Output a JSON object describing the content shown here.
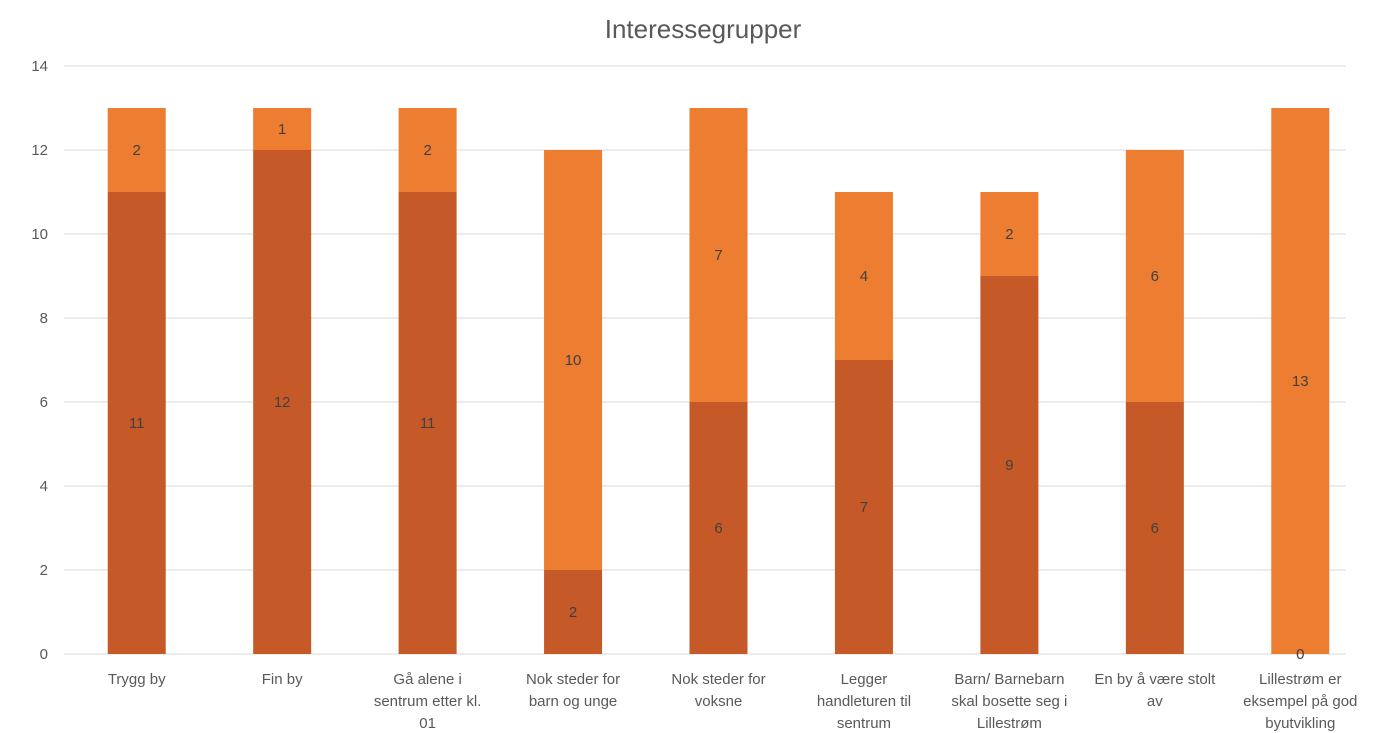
{
  "chart_data": {
    "type": "bar",
    "stacked": true,
    "title": "Interessegrupper",
    "categories": [
      [
        "Trygg by"
      ],
      [
        "Fin by"
      ],
      [
        "Gå alene i",
        "sentrum etter kl.",
        "01"
      ],
      [
        "Nok steder for",
        "barn og unge"
      ],
      [
        "Nok steder for",
        "voksne"
      ],
      [
        "Legger",
        "handleturen til",
        "sentrum"
      ],
      [
        "Barn/ Barnebarn",
        "skal bosette seg i",
        "Lillestrøm"
      ],
      [
        "En by å være stolt",
        "av"
      ],
      [
        "Lillestrøm er",
        "eksempel på god",
        "byutvikling"
      ]
    ],
    "series": [
      {
        "values": [
          11,
          12,
          11,
          2,
          6,
          7,
          9,
          6,
          0
        ],
        "color": "#c55a28"
      },
      {
        "values": [
          2,
          1,
          2,
          10,
          7,
          4,
          2,
          6,
          13
        ],
        "color": "#ed7d31"
      }
    ],
    "ylim": [
      0,
      14
    ],
    "yticks": [
      0,
      2,
      4,
      6,
      8,
      10,
      12,
      14
    ],
    "grid": true,
    "gridColor": "#d9d9d9",
    "legend": "none"
  }
}
